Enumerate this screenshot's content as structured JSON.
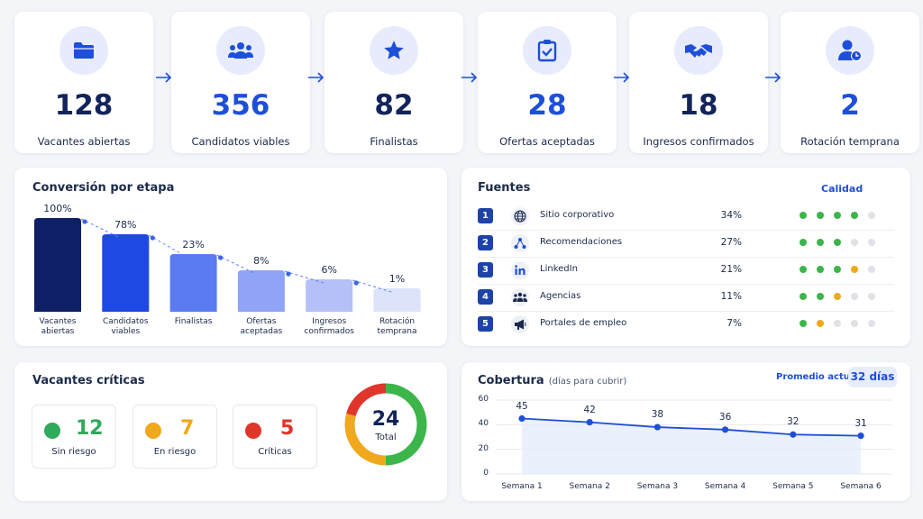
{
  "kpis": [
    {
      "value": "128",
      "label": "Vacantes abiertas",
      "icon": "folder-icon",
      "color": "#12245a"
    },
    {
      "value": "356",
      "label": "Candidatos viables",
      "icon": "users-icon",
      "color": "#1d4fd8"
    },
    {
      "value": "82",
      "label": "Finalistas",
      "icon": "star-icon",
      "color": "#12245a"
    },
    {
      "value": "28",
      "label": "Ofertas aceptadas",
      "icon": "clipboard-check-icon",
      "color": "#1d4fd8"
    },
    {
      "value": "18",
      "label": "Ingresos confirmados",
      "icon": "handshake-icon",
      "color": "#12245a"
    },
    {
      "value": "2",
      "label": "Rotación temprana",
      "icon": "user-clock-icon",
      "color": "#1d4fd8"
    }
  ],
  "conversion": {
    "title": "Conversión por etapa",
    "chart_data": {
      "type": "bar",
      "categories": [
        "Vacantes abiertas",
        "Candidatos viables",
        "Finalistas",
        "Ofertas aceptadas",
        "Ingresos confirmados",
        "Rotación temprana"
      ],
      "labels": [
        [
          "Vacantes",
          "abiertas"
        ],
        [
          "Candidatos",
          "viables"
        ],
        [
          "Finalistas"
        ],
        [
          "Ofertas",
          "aceptadas"
        ],
        [
          "Ingresos",
          "confirmados"
        ],
        [
          "Rotación",
          "temprana"
        ]
      ],
      "value_labels": [
        "100%",
        "78%",
        "23%",
        "8%",
        "6%",
        "1%"
      ],
      "colors": [
        "#0e1f66",
        "#1e49e2",
        "#5a7cf0",
        "#8fa4f6",
        "#b4c0f7",
        "#dde3fb"
      ]
    }
  },
  "sources": {
    "title": "Fuentes",
    "quality_label": "Calidad",
    "rows": [
      {
        "rank": "1",
        "name": "Sitio corporativo",
        "pct": "34%",
        "icon": "globe-icon",
        "quality": [
          "#3cb54a",
          "#3cb54a",
          "#3cb54a",
          "#3cb54a",
          "#dfe2e7"
        ]
      },
      {
        "rank": "2",
        "name": "Recomendaciones",
        "pct": "27%",
        "icon": "network-icon",
        "quality": [
          "#3cb54a",
          "#3cb54a",
          "#3cb54a",
          "#dfe2e7",
          "#dfe2e7"
        ]
      },
      {
        "rank": "3",
        "name": "LinkedIn",
        "pct": "21%",
        "icon": "linkedin-icon",
        "quality": [
          "#3cb54a",
          "#3cb54a",
          "#3cb54a",
          "#f0a81c",
          "#dfe2e7"
        ]
      },
      {
        "rank": "4",
        "name": "Agencias",
        "pct": "11%",
        "icon": "group-icon",
        "quality": [
          "#3cb54a",
          "#3cb54a",
          "#f0a81c",
          "#dfe2e7",
          "#dfe2e7"
        ]
      },
      {
        "rank": "5",
        "name": "Portales de empleo",
        "pct": "7%",
        "icon": "megaphone-icon",
        "quality": [
          "#3cb54a",
          "#f0a81c",
          "#dfe2e7",
          "#dfe2e7",
          "#dfe2e7"
        ]
      }
    ]
  },
  "critical": {
    "title": "Vacantes críticas",
    "boxes": [
      {
        "value": "12",
        "label": "Sin riesgo",
        "color": "#2eaa5a"
      },
      {
        "value": "7",
        "label": "En riesgo",
        "color": "#f0a81c"
      },
      {
        "value": "5",
        "label": "Críticas",
        "color": "#e0352b"
      }
    ],
    "total_value": "24",
    "total_label": "Total"
  },
  "coverage": {
    "title": "Cobertura",
    "subtitle": "(días para cubrir)",
    "avg_label": "Promedio actual",
    "avg_value": "32 días",
    "chart_data": {
      "type": "line",
      "x": [
        "Semana 1",
        "Semana 2",
        "Semana 3",
        "Semana 4",
        "Semana 5",
        "Semana 6"
      ],
      "y": [
        45,
        42,
        38,
        36,
        32,
        31
      ],
      "yticks": [
        "0",
        "20",
        "40",
        "60"
      ],
      "ylim": [
        0,
        60
      ],
      "color": "#1d4fd8"
    }
  }
}
